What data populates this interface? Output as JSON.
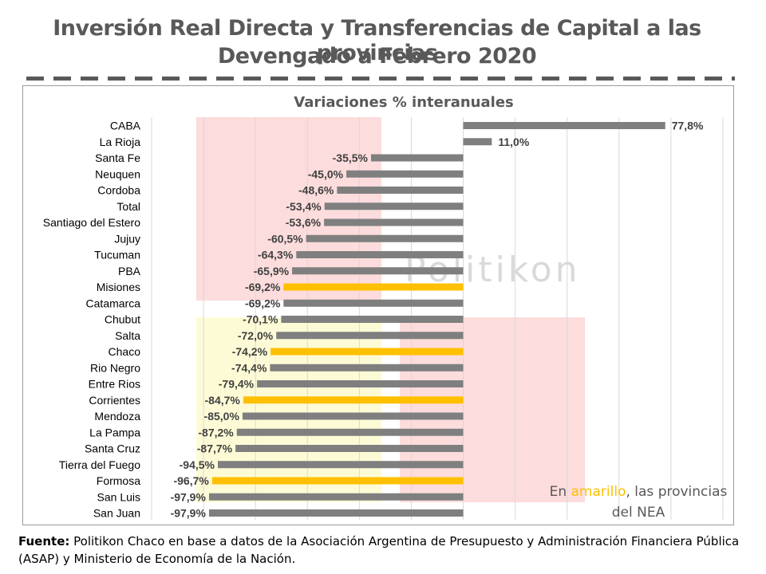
{
  "title_line1": "Inversión Real Directa y Transferencias de Capital a las provincias",
  "title_line2": "Devengado a Febrero 2020",
  "watermark": "Politikon",
  "note": {
    "prefix": "En ",
    "highlight": "amarillo",
    "rest": ",  las provincias",
    "line2": "del NEA"
  },
  "source": {
    "label": "Fuente:",
    "text": " Politikon Chaco en base a datos de la Asociación Argentina de Presupuesto y Administración Financiera Pública (ASAP) y Ministerio de Economía de la Nación."
  },
  "colors": {
    "bar": "#7f7f7f",
    "highlight": "#ffc000",
    "title": "#595959",
    "grid": "#d9d9d9"
  },
  "chart_data": {
    "type": "bar",
    "orientation": "horizontal",
    "title": "Variaciones % interanuales",
    "xlim": [
      -120,
      100
    ],
    "grid": true,
    "categories": [
      "CABA",
      "La Rioja",
      "Santa Fe",
      "Neuquen",
      "Cordoba",
      "Total",
      "Santiago del Estero",
      "Jujuy",
      "Tucuman",
      "PBA",
      "Misiones",
      "Catamarca",
      "Chubut",
      "Salta",
      "Chaco",
      "Rio Negro",
      "Entre Rios",
      "Corrientes",
      "Mendoza",
      "La Pampa",
      "Santa Cruz",
      "Tierra del Fuego",
      "Formosa",
      "San Luis",
      "San Juan"
    ],
    "values": [
      77.8,
      11.0,
      -35.5,
      -45.0,
      -48.6,
      -53.4,
      -53.6,
      -60.5,
      -64.3,
      -65.9,
      -69.2,
      -69.2,
      -70.1,
      -72.0,
      -74.2,
      -74.4,
      -79.4,
      -84.7,
      -85.0,
      -87.2,
      -87.7,
      -94.5,
      -96.7,
      -97.9,
      -97.9
    ],
    "labels": [
      "77,8%",
      "11,0%",
      "-35,5%",
      "-45,0%",
      "-48,6%",
      "-53,4%",
      "-53,6%",
      "-60,5%",
      "-64,3%",
      "-65,9%",
      "-69,2%",
      "-69,2%",
      "-70,1%",
      "-72,0%",
      "-74,2%",
      "-74,4%",
      "-79,4%",
      "-84,7%",
      "-85,0%",
      "-87,2%",
      "-87,7%",
      "-94,5%",
      "-96,7%",
      "-97,9%",
      "-97,9%"
    ],
    "highlighted": [
      "Misiones",
      "Chaco",
      "Corrientes",
      "Formosa"
    ]
  }
}
